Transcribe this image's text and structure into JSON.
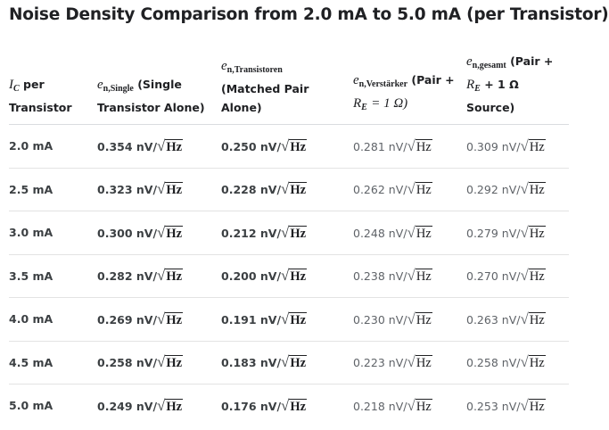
{
  "title": "Noise Density Comparison from 2.0 mA to 5.0 mA (per Transistor)",
  "table": {
    "headers": [
      {
        "symbol": "I",
        "subscript": "C",
        "text": "per Transistor"
      },
      {
        "symbol": "e",
        "subscript": "n,Single",
        "text": "(Single Transistor Alone)"
      },
      {
        "symbol": "e",
        "subscript": "n,Transistoren",
        "text": "(Matched Pair Alone)"
      },
      {
        "symbol": "e",
        "subscript": "n,Verstärker",
        "text": "(Pair +",
        "symbol2": "R",
        "subscript2": "E",
        "text2": "= 1 Ω)"
      },
      {
        "symbol": "e",
        "subscript": "n,gesamt",
        "text": "(Pair +",
        "symbol2": "R",
        "subscript2": "E",
        "text2": "+ 1 Ω Source)"
      }
    ],
    "unit": "nV/",
    "radical": "√",
    "radicand": "Hz",
    "rows": [
      [
        "2.0 mA",
        "0.354",
        "0.250",
        "0.281",
        "0.309"
      ],
      [
        "2.5 mA",
        "0.323",
        "0.228",
        "0.262",
        "0.292"
      ],
      [
        "3.0 mA",
        "0.300",
        "0.212",
        "0.248",
        "0.279"
      ],
      [
        "3.5 mA",
        "0.282",
        "0.200",
        "0.238",
        "0.270"
      ],
      [
        "4.0 mA",
        "0.269",
        "0.191",
        "0.230",
        "0.263"
      ],
      [
        "4.5 mA",
        "0.258",
        "0.183",
        "0.223",
        "0.258"
      ],
      [
        "5.0 mA",
        "0.249",
        "0.176",
        "0.218",
        "0.253"
      ]
    ]
  }
}
